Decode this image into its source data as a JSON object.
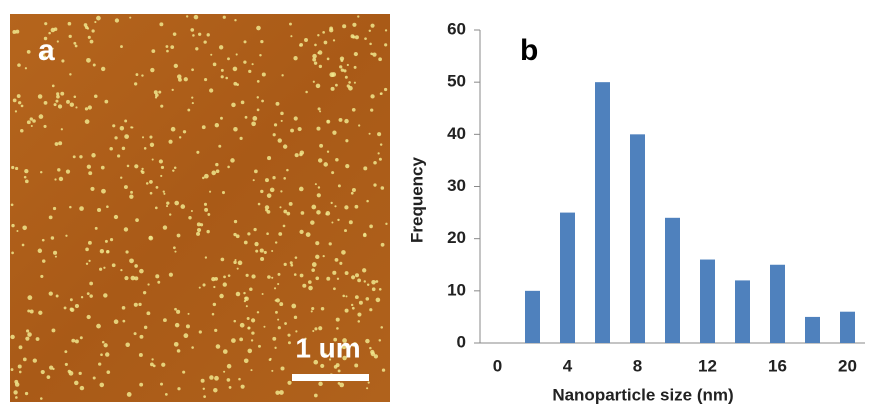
{
  "image_panel": {
    "label": "a",
    "scale_bar": "1 um"
  },
  "chart_data": {
    "type": "bar",
    "panel_label": "b",
    "x_label": "Nanoparticle size (nm)",
    "y_label": "Frequency",
    "x": [
      2,
      4,
      6,
      8,
      10,
      12,
      14,
      16,
      18,
      20
    ],
    "values": [
      10,
      25,
      50,
      40,
      24,
      16,
      12,
      15,
      5,
      6
    ],
    "color": "#4f81bd",
    "xlim": [
      -1,
      21
    ],
    "xticks": [
      0,
      4,
      8,
      12,
      16,
      20
    ],
    "ylim": [
      0,
      60
    ],
    "yticks": [
      0,
      10,
      20,
      30,
      40,
      50,
      60
    ]
  }
}
